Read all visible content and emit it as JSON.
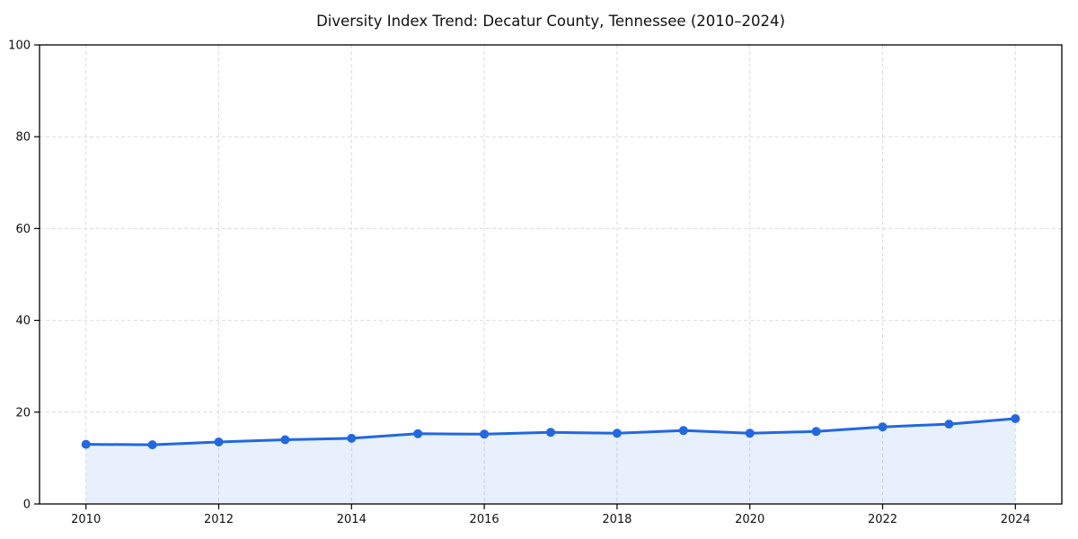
{
  "chart_data": {
    "type": "line",
    "title": "Diversity Index Trend: Decatur County, Tennessee (2010–2024)",
    "x": [
      2010,
      2011,
      2012,
      2013,
      2014,
      2015,
      2016,
      2017,
      2018,
      2019,
      2020,
      2021,
      2022,
      2023,
      2024
    ],
    "series": [
      {
        "name": "Diversity Index",
        "values": [
          13.0,
          12.9,
          13.5,
          14.0,
          14.3,
          15.3,
          15.2,
          15.6,
          15.4,
          16.0,
          15.4,
          15.8,
          16.8,
          17.4,
          18.6
        ]
      }
    ],
    "xlabel": "",
    "ylabel": "",
    "ylim": [
      0,
      100
    ],
    "yticks": [
      0,
      20,
      40,
      60,
      80,
      100
    ],
    "xticks": [
      2010,
      2012,
      2014,
      2016,
      2018,
      2020,
      2022,
      2024
    ],
    "grid": true,
    "grid_style": "dashed",
    "legend": false,
    "fill_under": true,
    "marker": "circle",
    "colors": {
      "line": "#2268e0",
      "marker": "#2268e0",
      "fill": "rgba(34, 104, 224, 0.10)",
      "grid": "#dcdcdc",
      "axis": "#000000",
      "text": "#111111",
      "background": "#ffffff"
    }
  }
}
